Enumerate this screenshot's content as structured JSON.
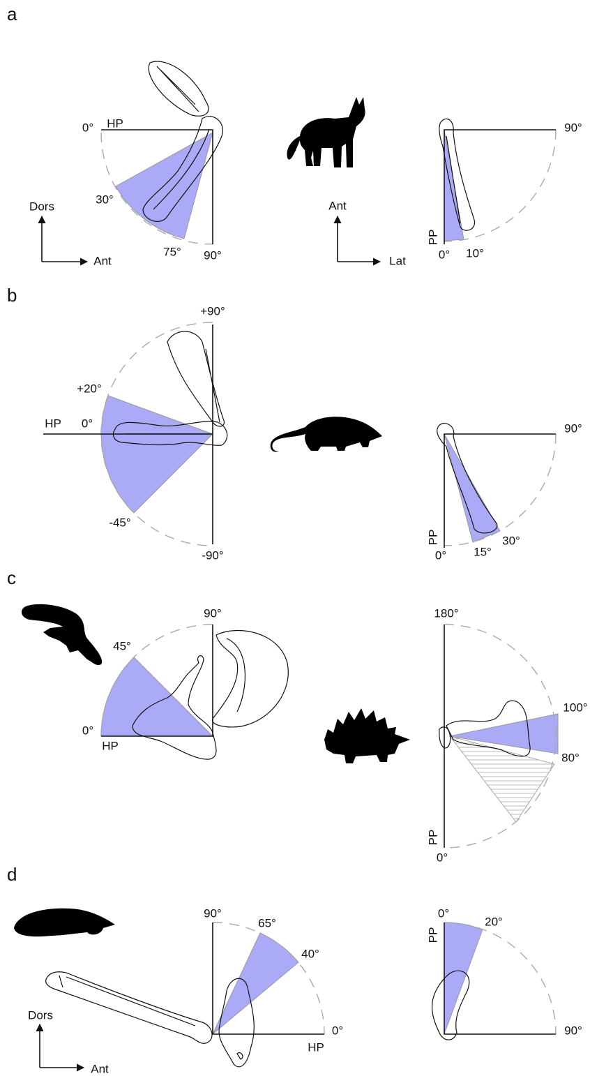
{
  "panels": [
    {
      "label": "a",
      "texts": [
        "0°",
        "HP",
        "30°",
        "75°",
        "90°",
        "Dors",
        "Ant",
        "Ant",
        "Lat",
        "90°",
        "PP",
        "0°",
        "10°"
      ]
    },
    {
      "label": "b",
      "texts": [
        "+90°",
        "+20°",
        "HP",
        "0°",
        "-45°",
        "-90°",
        "90°",
        "PP",
        "0°",
        "15°",
        "30°"
      ]
    },
    {
      "label": "c",
      "texts": [
        "90°",
        "45°",
        "0°",
        "HP",
        "180°",
        "100°",
        "80°",
        "PP",
        "0°"
      ]
    },
    {
      "label": "d",
      "texts": [
        "90°",
        "65°",
        "40°",
        "0°",
        "HP",
        "Dors",
        "Ant",
        "0°",
        "20°",
        "PP",
        "90°"
      ]
    }
  ]
}
